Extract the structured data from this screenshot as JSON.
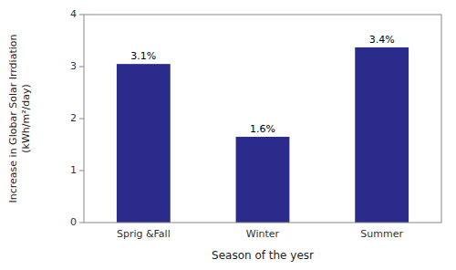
{
  "chart_data": {
    "type": "bar",
    "categories": [
      "Sprig &Fall",
      "Winter",
      "Summer"
    ],
    "values": [
      3.05,
      1.65,
      3.37
    ],
    "value_labels": [
      "3.1%",
      "1.6%",
      "3.4%"
    ],
    "data_labels": true,
    "color": "#2B2B8C",
    "xlabel": "Season of the yesr",
    "ylabel": "Increase in Globar Solar Irrdiation\n(kWh/m²/day)",
    "ylim": [
      0,
      4
    ],
    "yticks": [
      0,
      1,
      2,
      3,
      4
    ],
    "grid": false
  }
}
